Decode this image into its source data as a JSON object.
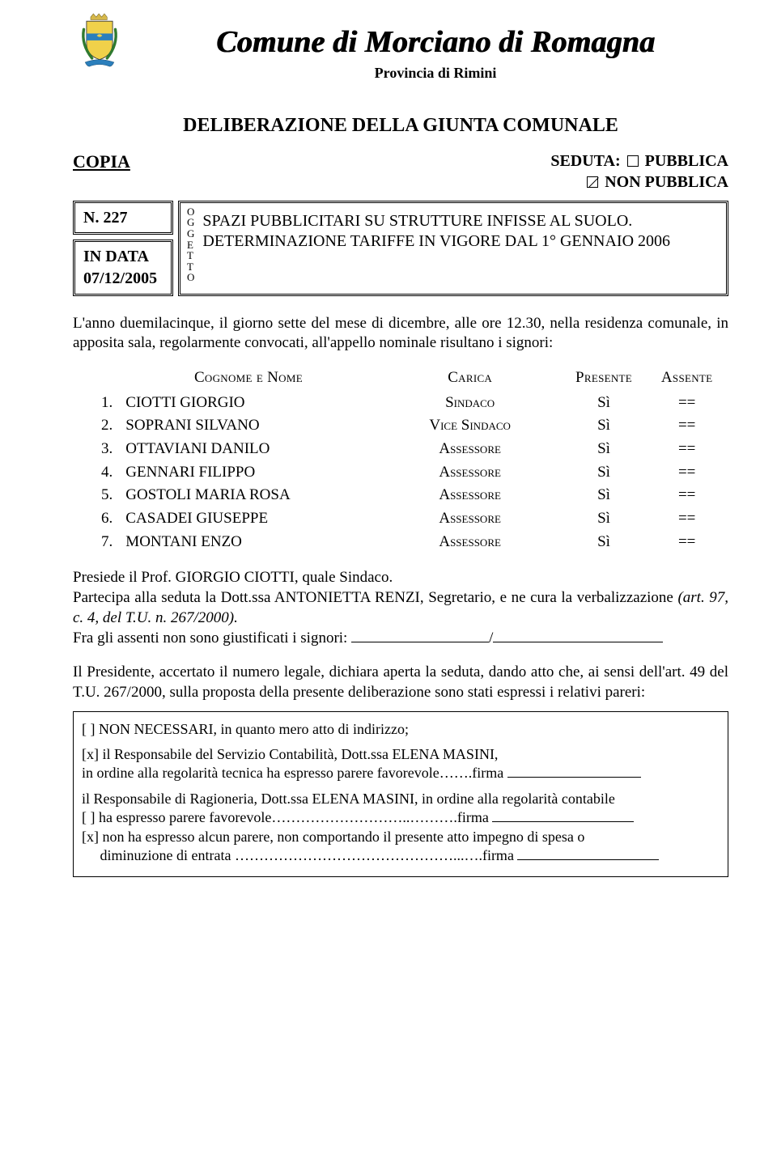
{
  "header": {
    "title": "Comune di Morciano di Romagna",
    "subtitle": "Provincia di Rimini",
    "deliberazione": "DELIBERAZIONE DELLA GIUNTA COMUNALE",
    "logo": {
      "shield_fill": "#f0d14a",
      "band_fill": "#2b7fbc",
      "crown_fill": "#d6b84a",
      "laurel_fill": "#2f7a2f",
      "ribbon_fill": "#2b7fbc"
    }
  },
  "seduta": {
    "copia": "COPIA",
    "label": "SEDUTA:",
    "pubblica": " PUBBLICA",
    "non_pubblica": " NON PUBBLICA"
  },
  "meta": {
    "num": "N. 227",
    "indata_line1": "IN DATA",
    "indata_line2": "07/12/2005",
    "oggetto_vert": [
      "O",
      "G",
      "G",
      "E",
      "T",
      "T",
      "O"
    ],
    "oggetto_text": "SPAZI PUBBLICITARI SU STRUTTURE INFISSE AL SUOLO. DETERMINAZIONE TARIFFE IN VIGORE DAL 1° GENNAIO 2006"
  },
  "intro": "L'anno duemilacinque, il giorno sette del mese di dicembre, alle ore 12.30, nella residenza comunale, in apposita sala, regolarmente convocati, all'appello nominale risultano i signori:",
  "table": {
    "headers": {
      "name": "Cognome e Nome",
      "role": "Carica",
      "pres": "Presente",
      "abs": "Assente"
    },
    "rows": [
      {
        "idx": "1.",
        "name": "CIOTTI GIORGIO",
        "role": "Sindaco",
        "pres": "Sì",
        "abs": "=="
      },
      {
        "idx": "2.",
        "name": "SOPRANI SILVANO",
        "role": "Vice Sindaco",
        "pres": "Sì",
        "abs": "=="
      },
      {
        "idx": "3.",
        "name": "OTTAVIANI DANILO",
        "role": "Assessore",
        "pres": "Sì",
        "abs": "=="
      },
      {
        "idx": "4.",
        "name": "GENNARI FILIPPO",
        "role": "Assessore",
        "pres": "Sì",
        "abs": "=="
      },
      {
        "idx": "5.",
        "name": "GOSTOLI MARIA ROSA",
        "role": "Assessore",
        "pres": "Sì",
        "abs": "=="
      },
      {
        "idx": "6.",
        "name": "CASADEI GIUSEPPE",
        "role": "Assessore",
        "pres": "Sì",
        "abs": "=="
      },
      {
        "idx": "7.",
        "name": "MONTANI ENZO",
        "role": "Assessore",
        "pres": "Sì",
        "abs": "=="
      }
    ]
  },
  "presiede": "Presiede il Prof. GIORGIO CIOTTI, quale Sindaco.",
  "partecipa_pre": "Partecipa alla seduta la Dott.ssa ANTONIETTA RENZI, Segretario, e ne cura la verbalizzazione ",
  "partecipa_italic": "(art. 97, c. 4, del T.U. n. 267/2000).",
  "assenti_label": "Fra gli assenti non sono giustificati i signori: ",
  "presidente": "Il Presidente, accertato il numero legale, dichiara aperta la seduta, dando atto che, ai sensi dell'art. 49 del T.U. 267/2000, sulla proposta della presente deliberazione sono stati espressi i relativi pareri:",
  "pareri": {
    "non_necessari": "[ ] NON NECESSARI, in quanto mero atto di indirizzo;",
    "respcont_1": "[x] il Responsabile del Servizio Contabilità, Dott.ssa ELENA MASINI,",
    "respcont_2": "in ordine alla regolarità tecnica ha espresso parere favorevole…….firma ",
    "resprag_1": "il Responsabile di Ragioneria, Dott.ssa ELENA MASINI, in ordine alla regolarità contabile",
    "resprag_2": "[ ] ha espresso parere favorevole………………………..……….firma ",
    "resprag_3": "[x] non ha espresso alcun parere, non comportando il presente atto impegno di spesa o",
    "resprag_4": "     diminuzione di entrata ………………………………………...….firma "
  }
}
